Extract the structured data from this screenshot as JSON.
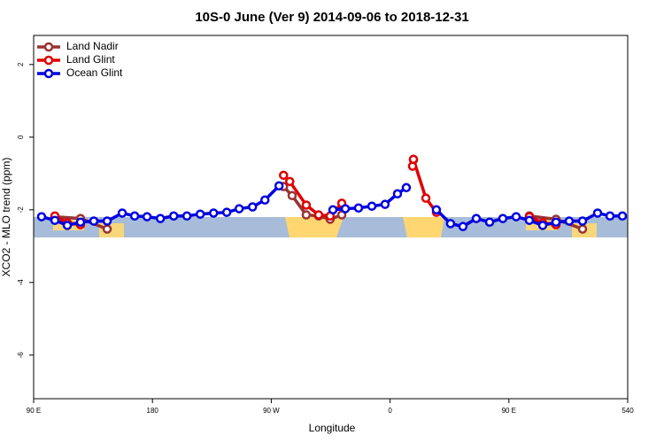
{
  "chart_data": {
    "type": "line",
    "title": "10S-0 June (Ver 9)   2014-09-06 to 2018-12-31",
    "x_label": "Longitude",
    "y_label": "XCO2 - MLO trend (ppm)",
    "xlim": [
      90,
      540
    ],
    "xticks": [
      {
        "value": 90,
        "label": "90 E"
      },
      180,
      {
        "value": 270,
        "label": "90 W"
      },
      {
        "value": 360,
        "label": "0"
      },
      {
        "value": 450,
        "label": "90 E"
      },
      540
    ],
    "ylim": [
      -7.2,
      2.8
    ],
    "yticks": [
      -6,
      -4,
      -2,
      0,
      2
    ],
    "legend": "top-left",
    "series": [
      {
        "name": "Land Nadir",
        "color": "#993333",
        "x": [
          106.1,
          125.5,
          145.7,
          null,
          279.3,
          285.8,
          296.5,
          305.9,
          314.6,
          323.4,
          null,
          377.7,
          null,
          465.5,
          485.7,
          505.8
        ],
        "values": [
          -2.19,
          -2.24,
          -2.53,
          null,
          -1.36,
          -1.61,
          -2.14,
          -2.17,
          -2.26,
          -2.14,
          null,
          -0.63,
          null,
          -2.17,
          -2.26,
          -2.53
        ]
      },
      {
        "name": "Land Glint",
        "color": "#e00000",
        "x": [
          106.1,
          115.5,
          125.5,
          null,
          279.3,
          284.0,
          296.5,
          305.9,
          314.6,
          323.4,
          null,
          377.0,
          377.7,
          387.1,
          395.1,
          null,
          465.5,
          475.6,
          485.7
        ],
        "values": [
          -2.17,
          -2.36,
          -2.41,
          null,
          -1.05,
          -1.22,
          -1.87,
          -2.14,
          -2.17,
          -1.82,
          null,
          -0.8,
          -0.61,
          -1.68,
          -2.07,
          null,
          -2.19,
          -2.36,
          -2.41
        ]
      },
      {
        "name": "Ocean Glint",
        "color": "#0000e0",
        "x": [
          96.0,
          106.1,
          115.5,
          125.5,
          135.6,
          145.7,
          157.1,
          166.5,
          175.9,
          186.0,
          196.1,
          206.1,
          216.2,
          226.3,
          236.3,
          245.7,
          255.8,
          265.2,
          275.9,
          null,
          316.7,
          326.1,
          336.1,
          346.2,
          356.2,
          365.6,
          372.3,
          null,
          395.1,
          405.8,
          415.2,
          425.3,
          435.4,
          445.4,
          455.5,
          465.5,
          475.6,
          485.7,
          495.7,
          505.8,
          517.2,
          526.6,
          536.0
        ],
        "values": [
          -2.19,
          -2.29,
          -2.43,
          -2.34,
          -2.31,
          -2.31,
          -2.09,
          -2.17,
          -2.19,
          -2.24,
          -2.17,
          -2.17,
          -2.12,
          -2.09,
          -2.07,
          -1.97,
          -1.92,
          -1.73,
          -1.34,
          null,
          -2.0,
          -1.97,
          -1.95,
          -1.9,
          -1.85,
          -1.56,
          -1.39,
          null,
          -2.0,
          -2.38,
          -2.46,
          -2.24,
          -2.34,
          -2.24,
          -2.19,
          -2.29,
          -2.43,
          -2.34,
          -2.31,
          -2.31,
          -2.09,
          -2.17,
          -2.17
        ]
      }
    ]
  }
}
